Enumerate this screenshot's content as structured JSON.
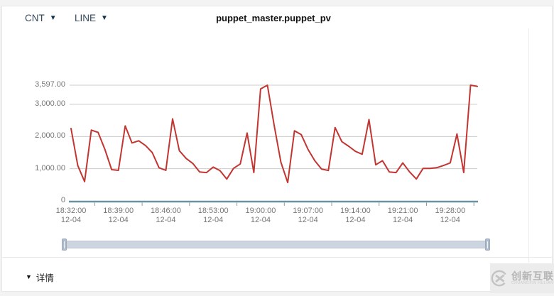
{
  "header": {
    "metric_dropdown": "CNT",
    "chart_type_dropdown": "LINE",
    "title": "puppet_master.puppet_pv"
  },
  "chart_data": {
    "type": "line",
    "title": "puppet_master.puppet_pv",
    "xlabel": "",
    "ylabel": "",
    "ylim": [
      0,
      3597
    ],
    "grid": true,
    "legend_position": "none",
    "y_tick_labels": [
      "3,597.00",
      "3,000.00",
      "2,000.00",
      "1,000.00",
      "0"
    ],
    "y_tick_values": [
      3597,
      3000,
      2000,
      1000,
      0
    ],
    "x_tick_labels": [
      {
        "time": "18:32:00",
        "date": "12-04"
      },
      {
        "time": "18:39:00",
        "date": "12-04"
      },
      {
        "time": "18:46:00",
        "date": "12-04"
      },
      {
        "time": "18:53:00",
        "date": "12-04"
      },
      {
        "time": "19:00:00",
        "date": "12-04"
      },
      {
        "time": "19:07:00",
        "date": "12-04"
      },
      {
        "time": "19:14:00",
        "date": "12-04"
      },
      {
        "time": "19:21:00",
        "date": "12-04"
      },
      {
        "time": "19:28:00",
        "date": "12-04"
      }
    ],
    "x_tick_interval_points": 7,
    "series": [
      {
        "name": "CNT",
        "color": "#c23531",
        "values": [
          2250,
          1100,
          600,
          2200,
          2130,
          1600,
          970,
          950,
          2330,
          1800,
          1870,
          1720,
          1500,
          1030,
          950,
          2550,
          1560,
          1320,
          1160,
          900,
          880,
          1050,
          940,
          680,
          1010,
          1150,
          2110,
          880,
          3480,
          3597,
          2350,
          1200,
          570,
          2180,
          2060,
          1600,
          1250,
          990,
          945,
          2280,
          1840,
          1700,
          1540,
          1450,
          2530,
          1120,
          1250,
          900,
          880,
          1180,
          900,
          680,
          1010,
          1010,
          1030,
          1100,
          1180,
          2080,
          880,
          3597,
          3560
        ]
      }
    ]
  },
  "footer": {
    "collapse_icon": "▼",
    "details_label": "详情"
  },
  "watermark": {
    "name": "创新互联",
    "tagline": "CHUANGXIN HULIAN"
  },
  "colors": {
    "line": "#c23531",
    "axis": "#6a93a2",
    "grid": "#cccccc",
    "tick": "#999999"
  }
}
